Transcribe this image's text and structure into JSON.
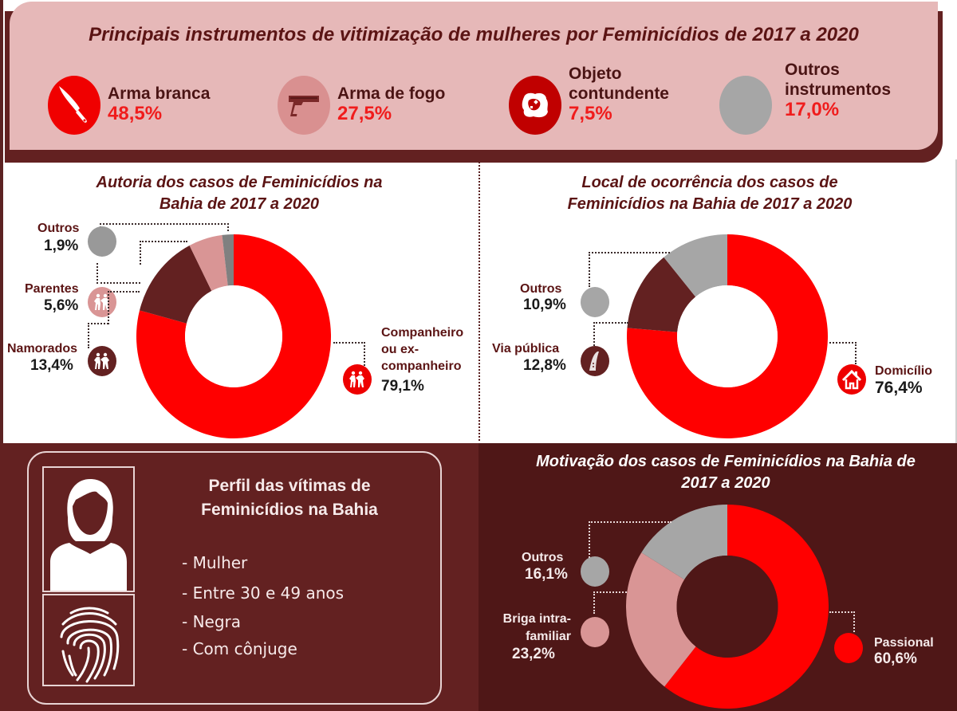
{
  "instruments": {
    "title": "Principais instrumentos de vitimização de mulheres por Feminicídios de 2017 a 2020",
    "items": [
      {
        "label_line1": "Arma branca",
        "label_line2": "",
        "value": "48,5%",
        "icon": "knife-icon",
        "color": "#f00000"
      },
      {
        "label_line1": "Arma de fogo",
        "label_line2": "",
        "value": "27,5%",
        "icon": "gun-icon",
        "color": "#d99090"
      },
      {
        "label_line1": "Objeto",
        "label_line2": "contundente",
        "value": "7,5%",
        "icon": "rock-icon",
        "color": "#c00000"
      },
      {
        "label_line1": "Outros",
        "label_line2": "instrumentos",
        "value": "17,0%",
        "icon": "none",
        "color": "#a6a6a6"
      }
    ]
  },
  "chart_data": [
    {
      "type": "pie",
      "title": "Autoria dos casos de Feminicídios na Bahia de 2017 a 2020",
      "title_line1": "Autoria dos casos de Feminicídios na",
      "title_line2": "Bahia de 2017 a 2020",
      "categories": [
        "Companheiro ou ex-companheiro",
        "Namorados",
        "Parentes",
        "Outros"
      ],
      "values": [
        79.1,
        13.4,
        5.6,
        1.9
      ],
      "colors": [
        "#ff0000",
        "#632121",
        "#d99595",
        "#808080"
      ],
      "labels": [
        {
          "text": "Companheiro\nou ex-\ncompanheiro",
          "value": "79,1%",
          "icon": "couple-icon"
        },
        {
          "text": "Namorados",
          "value": "13,4%",
          "icon": "couple-icon"
        },
        {
          "text": "Parentes",
          "value": "5,6%",
          "icon": "couple-icon"
        },
        {
          "text": "Outros",
          "value": "1,9%",
          "icon": "none"
        }
      ],
      "donut": true
    },
    {
      "type": "pie",
      "title": "Local de ocorrência dos casos de Feminicídios na Bahia de 2017 a 2020",
      "title_line1": "Local de ocorrência dos casos de",
      "title_line2": "Feminicídios na Bahia de 2017 a 2020",
      "categories": [
        "Domicílio",
        "Via pública",
        "Outros"
      ],
      "values": [
        76.4,
        12.8,
        10.9
      ],
      "colors": [
        "#ff0000",
        "#632121",
        "#a6a6a6"
      ],
      "labels": [
        {
          "text": "Domicílio",
          "value": "76,4%",
          "icon": "house-icon"
        },
        {
          "text": "Via pública",
          "value": "12,8%",
          "icon": "road-icon"
        },
        {
          "text": "Outros",
          "value": "10,9%",
          "icon": "none"
        }
      ],
      "donut": true
    },
    {
      "type": "pie",
      "title": "Motivação dos casos de Feminicídios na Bahia de 2017 a 2020",
      "title_line1": "Motivação dos casos de Feminicídios na Bahia de",
      "title_line2": "2017 a 2020",
      "categories": [
        "Passional",
        "Briga intra-familiar",
        "Outros"
      ],
      "values": [
        60.6,
        23.2,
        16.1
      ],
      "colors": [
        "#ff0000",
        "#d99595",
        "#a6a6a6"
      ],
      "labels": [
        {
          "text": "Passional",
          "value": "60,6%",
          "icon": "none"
        },
        {
          "text": "Briga intra-\nfamiliar",
          "value": "23,2%",
          "icon": "none"
        },
        {
          "text": "Outros",
          "value": "16,1%",
          "icon": "none"
        }
      ],
      "donut": true
    }
  ],
  "profile": {
    "title_line1": "Perfil das vítimas de",
    "title_line2": "Feminicídios na Bahia",
    "items": [
      "- Mulher",
      "- Entre 30 e 49 anos",
      "- Negra",
      "- Com cônjuge"
    ]
  }
}
